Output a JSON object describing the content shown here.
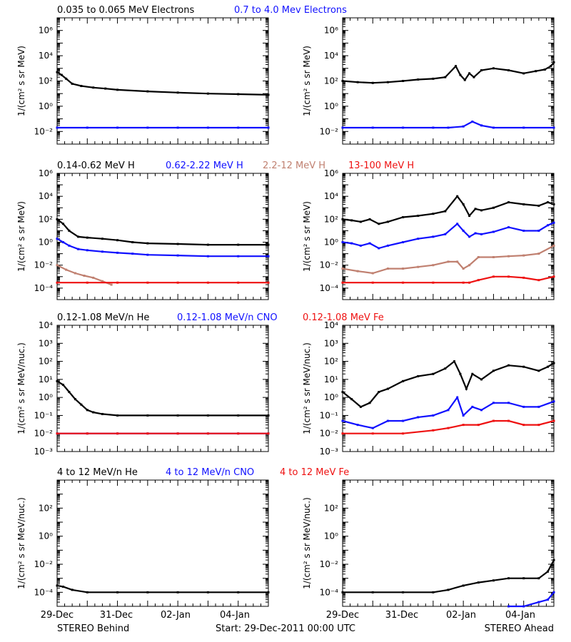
{
  "colors": {
    "black": "#000000",
    "blue": "#1010ff",
    "tan": "#c08070",
    "red": "#ee1111"
  },
  "footer": {
    "left": "STEREO Behind",
    "center": "Start: 29-Dec-2011 00:00 UTC",
    "right": "STEREO Ahead"
  },
  "x_tick_labels": [
    "29-Dec",
    "31-Dec",
    "02-Jan",
    "04-Jan"
  ],
  "rows": [
    {
      "legend": [
        {
          "text": "0.035 to 0.065 MeV Electrons",
          "color": "black"
        },
        {
          "text": "0.7 to 4.0 Mev Electrons",
          "color": "blue"
        }
      ],
      "ylabel": "1/(cm² s sr MeV)",
      "ylog": [
        -3,
        7
      ],
      "yticks": [
        {
          "e": -2,
          "label": "10⁻²"
        },
        {
          "e": 0,
          "label": "10⁰"
        },
        {
          "e": 2,
          "label": "10²"
        },
        {
          "e": 4,
          "label": "10⁴"
        },
        {
          "e": 6,
          "label": "10⁶"
        }
      ]
    },
    {
      "legend": [
        {
          "text": "0.14-0.62 MeV H",
          "color": "black"
        },
        {
          "text": "0.62-2.22 MeV H",
          "color": "blue"
        },
        {
          "text": "2.2-12 MeV H",
          "color": "tan"
        },
        {
          "text": "13-100 MeV H",
          "color": "red"
        }
      ],
      "ylabel": "1/(cm² s sr MeV)",
      "ylog": [
        -5,
        6
      ],
      "yticks": [
        {
          "e": -4,
          "label": "10⁻⁴"
        },
        {
          "e": -2,
          "label": "10⁻²"
        },
        {
          "e": 0,
          "label": "10⁰"
        },
        {
          "e": 2,
          "label": "10²"
        },
        {
          "e": 4,
          "label": "10⁴"
        },
        {
          "e": 6,
          "label": "10⁶"
        }
      ]
    },
    {
      "legend": [
        {
          "text": "0.12-1.08 MeV/n He",
          "color": "black"
        },
        {
          "text": "0.12-1.08 MeV/n CNO",
          "color": "blue"
        },
        {
          "text": "0.12-1.08 MeV Fe",
          "color": "red"
        }
      ],
      "ylabel": "1/(cm² s sr MeV/nuc.)",
      "ylog": [
        -3,
        4
      ],
      "yticks": [
        {
          "e": -3,
          "label": "10⁻³"
        },
        {
          "e": -2,
          "label": "10⁻²"
        },
        {
          "e": -1,
          "label": "10⁻¹"
        },
        {
          "e": 0,
          "label": "10⁰"
        },
        {
          "e": 1,
          "label": "10¹"
        },
        {
          "e": 2,
          "label": "10²"
        },
        {
          "e": 3,
          "label": "10³"
        },
        {
          "e": 4,
          "label": "10⁴"
        }
      ]
    },
    {
      "legend": [
        {
          "text": "4 to 12 MeV/n He",
          "color": "black"
        },
        {
          "text": "4 to 12 MeV/n CNO",
          "color": "blue"
        },
        {
          "text": "4 to 12 MeV Fe",
          "color": "red"
        }
      ],
      "ylabel": "1/(cm² s sr MeV/nuc.)",
      "ylog": [
        -5,
        4
      ],
      "yticks": [
        {
          "e": -4,
          "label": "10⁻⁴"
        },
        {
          "e": -2,
          "label": "10⁻²"
        },
        {
          "e": 0,
          "label": "10⁰"
        },
        {
          "e": 2,
          "label": "10²"
        }
      ]
    }
  ],
  "chart_data": [
    {
      "type": "line",
      "panel": "electrons-behind",
      "yscale": "log",
      "xrange_days": [
        0,
        7
      ],
      "series": [
        {
          "name": "0.035 to 0.065 MeV Electrons",
          "color": "black",
          "x": [
            0,
            0.15,
            0.3,
            0.5,
            0.8,
            1.2,
            1.6,
            2,
            3,
            4,
            5,
            6,
            7
          ],
          "y": [
            500,
            300,
            150,
            60,
            40,
            30,
            25,
            20,
            15,
            12,
            10,
            9,
            8
          ]
        },
        {
          "name": "0.7 to 4.0 Mev Electrons",
          "color": "blue",
          "x": [
            0,
            1,
            2,
            3,
            4,
            5,
            6,
            7
          ],
          "y": [
            0.02,
            0.02,
            0.02,
            0.02,
            0.02,
            0.02,
            0.02,
            0.02
          ]
        }
      ]
    },
    {
      "type": "line",
      "panel": "electrons-ahead",
      "yscale": "log",
      "xrange_days": [
        0,
        7
      ],
      "series": [
        {
          "name": "0.035 to 0.065 MeV Electrons",
          "color": "black",
          "x": [
            0,
            0.5,
            1,
            1.5,
            2,
            2.5,
            3,
            3.4,
            3.75,
            3.9,
            4.05,
            4.2,
            4.35,
            4.6,
            5,
            5.5,
            6,
            6.4,
            6.7,
            6.9,
            7
          ],
          "y": [
            100,
            80,
            70,
            80,
            100,
            130,
            150,
            200,
            1500,
            300,
            120,
            400,
            200,
            700,
            1000,
            700,
            400,
            600,
            800,
            1500,
            3000
          ]
        },
        {
          "name": "0.7 to 4.0 Mev Electrons",
          "color": "blue",
          "x": [
            0,
            1,
            2,
            3,
            3.5,
            4,
            4.3,
            4.6,
            5,
            6,
            7
          ],
          "y": [
            0.02,
            0.02,
            0.02,
            0.02,
            0.02,
            0.025,
            0.06,
            0.03,
            0.02,
            0.02,
            0.02
          ]
        }
      ]
    },
    {
      "type": "line",
      "panel": "protons-behind",
      "yscale": "log",
      "xrange_days": [
        0,
        7
      ],
      "series": [
        {
          "name": "0.14-0.62 MeV H",
          "color": "black",
          "x": [
            0,
            0.2,
            0.4,
            0.7,
            1,
            1.5,
            2,
            2.5,
            3,
            4,
            5,
            6,
            7
          ],
          "y": [
            100,
            40,
            10,
            3,
            2.5,
            2,
            1.5,
            1,
            0.8,
            0.7,
            0.6,
            0.6,
            0.6
          ]
        },
        {
          "name": "0.62-2.22 MeV H",
          "color": "blue",
          "x": [
            0,
            0.2,
            0.4,
            0.7,
            1,
            1.5,
            2,
            2.5,
            3,
            4,
            5,
            6,
            7
          ],
          "y": [
            2,
            1,
            0.5,
            0.25,
            0.2,
            0.15,
            0.12,
            0.1,
            0.08,
            0.07,
            0.06,
            0.06,
            0.06
          ]
        },
        {
          "name": "2.2-12 MeV H",
          "color": "tan",
          "x": [
            0,
            0.3,
            0.6,
            0.9,
            1.2,
            1.5,
            1.8
          ],
          "y": [
            0.01,
            0.004,
            0.002,
            0.0012,
            0.0008,
            0.0004,
            0.0002
          ]
        },
        {
          "name": "13-100 MeV H",
          "color": "red",
          "x": [
            0,
            1,
            2,
            3,
            4,
            5,
            6,
            7
          ],
          "y": [
            0.0003,
            0.0003,
            0.0003,
            0.0003,
            0.0003,
            0.0003,
            0.0003,
            0.0003
          ]
        }
      ]
    },
    {
      "type": "line",
      "panel": "protons-ahead",
      "yscale": "log",
      "xrange_days": [
        0,
        7
      ],
      "series": [
        {
          "name": "0.14-0.62 MeV H",
          "color": "black",
          "x": [
            0,
            0.3,
            0.6,
            0.9,
            1.2,
            1.5,
            2,
            2.5,
            3,
            3.4,
            3.8,
            4,
            4.2,
            4.4,
            4.6,
            5,
            5.5,
            6,
            6.5,
            6.8,
            7
          ],
          "y": [
            100,
            80,
            60,
            100,
            40,
            60,
            150,
            200,
            300,
            500,
            10000,
            2000,
            200,
            800,
            600,
            1000,
            3000,
            2000,
            1500,
            3000,
            2000
          ]
        },
        {
          "name": "0.62-2.22 MeV H",
          "color": "blue",
          "x": [
            0,
            0.3,
            0.6,
            0.9,
            1.2,
            1.5,
            2,
            2.5,
            3,
            3.4,
            3.8,
            4,
            4.2,
            4.4,
            4.6,
            5,
            5.5,
            6,
            6.5,
            6.8,
            7
          ],
          "y": [
            1,
            0.8,
            0.5,
            0.8,
            0.3,
            0.5,
            1,
            2,
            3,
            5,
            40,
            10,
            3,
            6,
            5,
            8,
            20,
            10,
            10,
            30,
            50
          ]
        },
        {
          "name": "2.2-12 MeV H",
          "color": "tan",
          "x": [
            0,
            0.5,
            1,
            1.5,
            2,
            2.5,
            3,
            3.5,
            3.8,
            4,
            4.2,
            4.5,
            5,
            5.5,
            6,
            6.5,
            7
          ],
          "y": [
            0.005,
            0.003,
            0.002,
            0.005,
            0.005,
            0.007,
            0.01,
            0.02,
            0.02,
            0.005,
            0.01,
            0.05,
            0.05,
            0.06,
            0.07,
            0.1,
            0.5
          ]
        },
        {
          "name": "13-100 MeV H",
          "color": "red",
          "x": [
            0,
            1,
            2,
            3,
            4,
            4.2,
            4.5,
            5,
            5.5,
            6,
            6.5,
            7
          ],
          "y": [
            0.0003,
            0.0003,
            0.0003,
            0.0003,
            0.0003,
            0.0003,
            0.0005,
            0.001,
            0.001,
            0.0008,
            0.0005,
            0.001
          ]
        }
      ]
    },
    {
      "type": "scatter",
      "panel": "heavy-low-behind",
      "yscale": "log",
      "xrange_days": [
        0,
        7
      ],
      "series": [
        {
          "name": "0.12-1.08 MeV/n He",
          "color": "black",
          "x": [
            0,
            0.2,
            0.4,
            0.6,
            0.8,
            1,
            1.2,
            1.5,
            2,
            3,
            4,
            5,
            6,
            7
          ],
          "y": [
            8,
            5,
            2,
            0.8,
            0.4,
            0.2,
            0.15,
            0.12,
            0.1,
            0.1,
            0.1,
            0.1,
            0.1,
            0.1
          ]
        },
        {
          "name": "0.12-1.08 MeV/n CNO",
          "color": "blue",
          "x": [
            0,
            1,
            2,
            3,
            4,
            5,
            6,
            7
          ],
          "y": [
            0.01,
            0.01,
            0.01,
            0.01,
            0.01,
            0.01,
            0.01,
            0.01
          ]
        },
        {
          "name": "0.12-1.08 MeV Fe",
          "color": "red",
          "x": [
            0,
            1,
            2,
            3,
            4,
            5,
            6,
            7
          ],
          "y": [
            0.01,
            0.01,
            0.01,
            0.01,
            0.01,
            0.01,
            0.01,
            0.01
          ]
        }
      ]
    },
    {
      "type": "scatter",
      "panel": "heavy-low-ahead",
      "yscale": "log",
      "xrange_days": [
        0,
        7
      ],
      "series": [
        {
          "name": "0.12-1.08 MeV/n He",
          "color": "black",
          "x": [
            0,
            0.3,
            0.6,
            0.9,
            1.2,
            1.5,
            2,
            2.5,
            3,
            3.4,
            3.7,
            3.9,
            4.1,
            4.3,
            4.6,
            5,
            5.5,
            6,
            6.5,
            6.8,
            7
          ],
          "y": [
            2,
            0.8,
            0.3,
            0.5,
            2,
            3,
            8,
            15,
            20,
            40,
            100,
            20,
            3,
            20,
            10,
            30,
            60,
            50,
            30,
            50,
            80
          ]
        },
        {
          "name": "0.12-1.08 MeV/n CNO",
          "color": "blue",
          "x": [
            0,
            0.5,
            1,
            1.5,
            2,
            2.5,
            3,
            3.5,
            3.8,
            4,
            4.3,
            4.6,
            5,
            5.5,
            6,
            6.5,
            7
          ],
          "y": [
            0.05,
            0.03,
            0.02,
            0.05,
            0.05,
            0.08,
            0.1,
            0.2,
            1,
            0.1,
            0.3,
            0.2,
            0.5,
            0.5,
            0.3,
            0.3,
            0.6
          ]
        },
        {
          "name": "0.12-1.08 MeV Fe",
          "color": "red",
          "x": [
            0,
            1,
            2,
            3,
            3.5,
            4,
            4.5,
            5,
            5.5,
            6,
            6.5,
            7
          ],
          "y": [
            0.01,
            0.01,
            0.01,
            0.015,
            0.02,
            0.03,
            0.03,
            0.05,
            0.05,
            0.03,
            0.03,
            0.05
          ]
        }
      ]
    },
    {
      "type": "scatter",
      "panel": "heavy-high-behind",
      "yscale": "log",
      "xrange_days": [
        0,
        7
      ],
      "series": [
        {
          "name": "4 to 12 MeV/n He",
          "color": "black",
          "x": [
            0,
            0.2,
            0.5,
            1,
            2,
            3,
            4,
            5,
            6,
            7
          ],
          "y": [
            0.0003,
            0.00025,
            0.00015,
            0.0001,
            0.0001,
            0.0001,
            0.0001,
            0.0001,
            0.0001,
            0.0001
          ]
        }
      ]
    },
    {
      "type": "scatter",
      "panel": "heavy-high-ahead",
      "yscale": "log",
      "xrange_days": [
        0,
        7
      ],
      "series": [
        {
          "name": "4 to 12 MeV/n He",
          "color": "black",
          "x": [
            0,
            1,
            2,
            3,
            3.5,
            4,
            4.5,
            5,
            5.5,
            6,
            6.5,
            6.8,
            7
          ],
          "y": [
            0.0001,
            0.0001,
            0.0001,
            0.0001,
            0.00015,
            0.0003,
            0.0005,
            0.0007,
            0.001,
            0.001,
            0.001,
            0.003,
            0.02
          ]
        },
        {
          "name": "4 to 12 MeV/n CNO",
          "color": "blue",
          "x": [
            5.5,
            6,
            6.5,
            6.8,
            7
          ],
          "y": [
            1e-05,
            1e-05,
            2e-05,
            3e-05,
            0.0001
          ]
        }
      ]
    }
  ]
}
